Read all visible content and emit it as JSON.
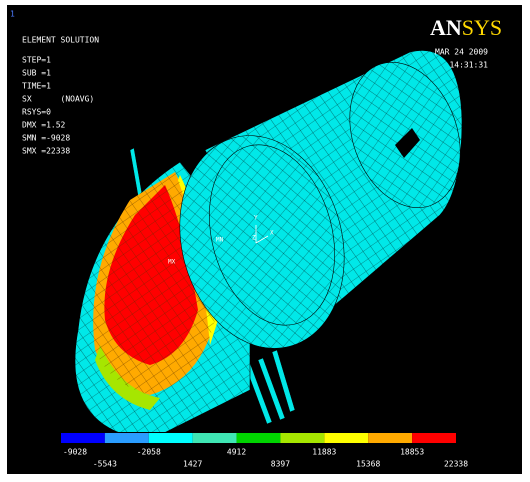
{
  "window_number": "1",
  "header": {
    "title": "ELEMENT SOLUTION",
    "lines": [
      "STEP=1",
      "SUB =1",
      "TIME=1",
      "SX      (NOAVG)",
      "RSYS=0",
      "DMX =1.52",
      "SMN =-9028",
      "SMX =22338"
    ],
    "date": "MAR 24 2009",
    "time": "14:31:31"
  },
  "logo": {
    "part1": "AN",
    "part2": "SYS"
  },
  "model_labels": {
    "max": "MX",
    "min": "MN",
    "axis_x": "X",
    "axis_y": "Y",
    "axis_z": "Z"
  },
  "legend": {
    "levels": [
      -9028,
      -5543,
      -2058,
      1427,
      4912,
      8397,
      11883,
      15368,
      18853,
      22338
    ],
    "colors": [
      "#0000ff",
      "#2a9dff",
      "#00ffff",
      "#3fe6b4",
      "#00d400",
      "#a6e600",
      "#ffff00",
      "#ffaa00",
      "#ff0000"
    ]
  }
}
